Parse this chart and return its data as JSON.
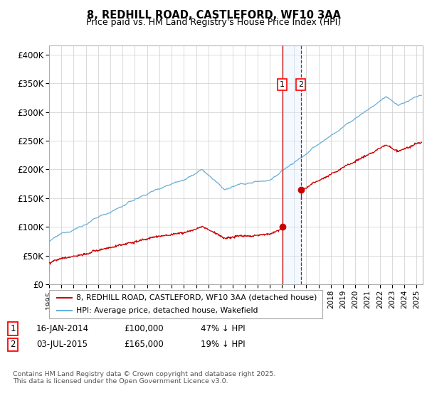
{
  "title_line1": "8, REDHILL ROAD, CASTLEFORD, WF10 3AA",
  "title_line2": "Price paid vs. HM Land Registry's House Price Index (HPI)",
  "ylabel_ticks": [
    "£0",
    "£50K",
    "£100K",
    "£150K",
    "£200K",
    "£250K",
    "£300K",
    "£350K",
    "£400K"
  ],
  "ytick_vals": [
    0,
    50000,
    100000,
    150000,
    200000,
    250000,
    300000,
    350000,
    400000
  ],
  "ylim": [
    0,
    415000
  ],
  "xlim_start": 1995.0,
  "xlim_end": 2025.5,
  "xtick_years": [
    1995,
    1996,
    1997,
    1998,
    1999,
    2000,
    2001,
    2002,
    2003,
    2004,
    2005,
    2006,
    2007,
    2008,
    2009,
    2010,
    2011,
    2012,
    2013,
    2014,
    2015,
    2016,
    2017,
    2018,
    2019,
    2020,
    2021,
    2022,
    2023,
    2024,
    2025
  ],
  "hpi_color": "#6baed6",
  "price_color": "#cc0000",
  "vline1_x": 2014.04,
  "vline2_x": 2015.54,
  "vline_color": "#dd0000",
  "vshade_color": "#ddeeff",
  "marker1_x": 2014.04,
  "marker1_y": 100000,
  "marker2_x": 2015.54,
  "marker2_y": 165000,
  "legend_label_red": "8, REDHILL ROAD, CASTLEFORD, WF10 3AA (detached house)",
  "legend_label_blue": "HPI: Average price, detached house, Wakefield",
  "sale1_t": 2014.04,
  "sale1_p": 100000,
  "sale2_t": 2015.54,
  "sale2_p": 165000,
  "footer": "Contains HM Land Registry data © Crown copyright and database right 2025.\nThis data is licensed under the Open Government Licence v3.0.",
  "background_color": "#ffffff",
  "grid_color": "#cccccc"
}
